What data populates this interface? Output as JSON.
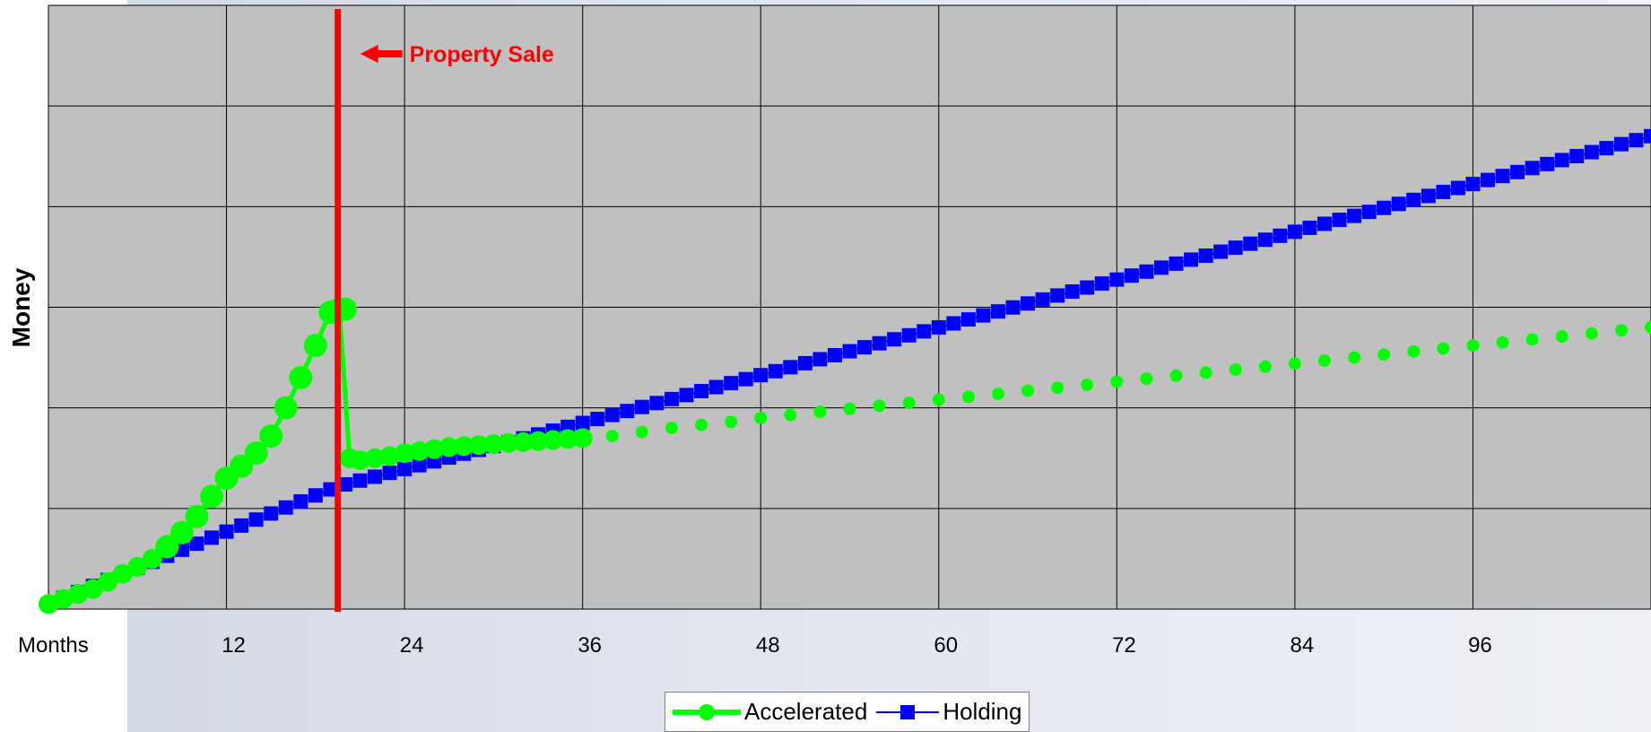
{
  "chart_data": {
    "type": "line",
    "title": "",
    "xlabel": "Months",
    "ylabel": "Money",
    "xlim": [
      0,
      108
    ],
    "ylim": [
      0,
      6
    ],
    "x_ticks": [
      12,
      24,
      36,
      48,
      60,
      72,
      84,
      96
    ],
    "grid": true,
    "legend_position": "bottom-center",
    "annotation": {
      "text": "Property Sale",
      "x": 19.5,
      "color": "#ff0000"
    },
    "series": [
      {
        "name": "Accelerated",
        "color": "#00ff00",
        "marker": "circle",
        "points": [
          [
            0,
            0.05
          ],
          [
            1,
            0.1
          ],
          [
            2,
            0.15
          ],
          [
            3,
            0.2
          ],
          [
            4,
            0.27
          ],
          [
            5,
            0.35
          ],
          [
            6,
            0.42
          ],
          [
            7,
            0.5
          ],
          [
            8,
            0.62
          ],
          [
            9,
            0.76
          ],
          [
            10,
            0.92
          ],
          [
            11,
            1.12
          ],
          [
            12,
            1.3
          ],
          [
            13,
            1.42
          ],
          [
            14,
            1.55
          ],
          [
            15,
            1.72
          ],
          [
            16,
            2.0
          ],
          [
            17,
            2.3
          ],
          [
            18,
            2.62
          ],
          [
            19,
            2.95
          ],
          [
            20,
            2.98
          ],
          [
            19.6,
            2.98
          ],
          [
            20.3,
            1.5
          ],
          [
            21,
            1.48
          ],
          [
            22,
            1.5
          ],
          [
            23,
            1.52
          ],
          [
            24,
            1.55
          ],
          [
            25,
            1.57
          ],
          [
            26,
            1.59
          ],
          [
            27,
            1.61
          ],
          [
            28,
            1.62
          ],
          [
            29,
            1.63
          ],
          [
            30,
            1.64
          ],
          [
            31,
            1.65
          ],
          [
            32,
            1.66
          ],
          [
            33,
            1.67
          ],
          [
            34,
            1.68
          ],
          [
            35,
            1.69
          ],
          [
            36,
            1.7
          ]
        ],
        "dotted": [
          [
            38,
            1.72
          ],
          [
            40,
            1.76
          ],
          [
            42,
            1.8
          ],
          [
            44,
            1.83
          ],
          [
            46,
            1.86
          ],
          [
            48,
            1.9
          ],
          [
            50,
            1.93
          ],
          [
            52,
            1.96
          ],
          [
            54,
            1.99
          ],
          [
            56,
            2.02
          ],
          [
            58,
            2.05
          ],
          [
            60,
            2.08
          ],
          [
            62,
            2.11
          ],
          [
            64,
            2.14
          ],
          [
            66,
            2.17
          ],
          [
            68,
            2.2
          ],
          [
            70,
            2.23
          ],
          [
            72,
            2.26
          ],
          [
            74,
            2.29
          ],
          [
            76,
            2.32
          ],
          [
            78,
            2.35
          ],
          [
            80,
            2.38
          ],
          [
            82,
            2.41
          ],
          [
            84,
            2.44
          ],
          [
            86,
            2.47
          ],
          [
            88,
            2.5
          ],
          [
            90,
            2.53
          ],
          [
            92,
            2.56
          ],
          [
            94,
            2.59
          ],
          [
            96,
            2.62
          ],
          [
            98,
            2.65
          ],
          [
            100,
            2.68
          ],
          [
            102,
            2.71
          ],
          [
            104,
            2.74
          ],
          [
            106,
            2.77
          ],
          [
            108,
            2.8
          ]
        ]
      },
      {
        "name": "Holding",
        "color": "#0000ff",
        "marker": "square",
        "x_start": 0,
        "x_end": 108,
        "x_step": 1,
        "y_knots": [
          [
            0,
            0.05
          ],
          [
            19.5,
            1.22
          ],
          [
            36,
            1.85
          ],
          [
            108,
            4.7
          ]
        ]
      }
    ]
  },
  "legend": {
    "items": [
      {
        "label": "Accelerated"
      },
      {
        "label": "Holding"
      }
    ]
  }
}
